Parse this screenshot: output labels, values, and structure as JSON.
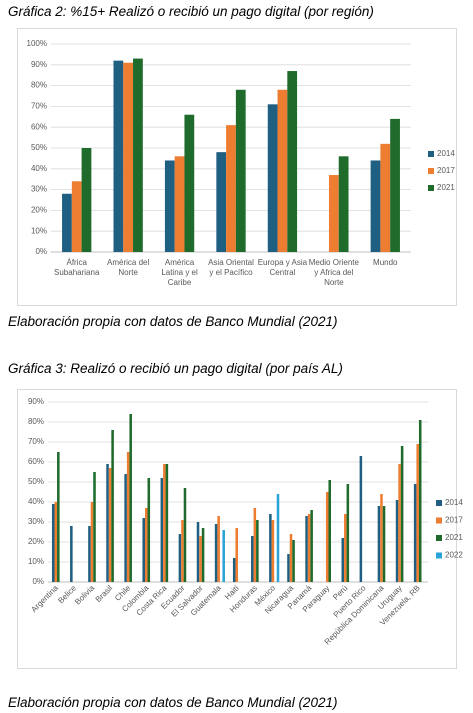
{
  "chart_data": [
    {
      "type": "bar",
      "title": "Gráfica 2: %15+ Realizó o recibió un pago digital (por región)",
      "note": "Elaboración propia con datos de Banco Mundial (2021)",
      "categories": [
        "África Subahariana",
        "América del Norte",
        "América Latina y el Caribe",
        "Asia Oriental y el Pacífico",
        "Europa y Asia Central",
        "Medio Oriente y Africa del Norte",
        "Mundo"
      ],
      "series": [
        {
          "name": "2014",
          "color": "#1f5f82",
          "values": [
            28,
            92,
            44,
            48,
            71,
            null,
            44
          ]
        },
        {
          "name": "2017",
          "color": "#ed7d31",
          "values": [
            34,
            91,
            46,
            61,
            78,
            37,
            52
          ]
        },
        {
          "name": "2021",
          "color": "#1e6b2c",
          "values": [
            50,
            93,
            66,
            78,
            87,
            46,
            64
          ]
        }
      ],
      "ylim": [
        0,
        100
      ],
      "yticks": [
        {
          "value": 0,
          "label": "0%"
        },
        {
          "value": 10,
          "label": "10%"
        },
        {
          "value": 20,
          "label": "20%"
        },
        {
          "value": 30,
          "label": "30%"
        },
        {
          "value": 40,
          "label": "40%"
        },
        {
          "value": 50,
          "label": "50%"
        },
        {
          "value": 60,
          "label": "60%"
        },
        {
          "value": 70,
          "label": "70%"
        },
        {
          "value": 80,
          "label": "80%"
        },
        {
          "value": 90,
          "label": "90%"
        },
        {
          "value": 100,
          "label": "100%"
        }
      ],
      "grid": true,
      "legend": "right"
    },
    {
      "type": "bar",
      "title": "Gráfica 3: Realizó o recibió un pago digital (por país AL)",
      "note": "Elaboración propia con datos de Banco Mundial (2021)",
      "categories": [
        "Argentina",
        "Belice",
        "Bolivia",
        "Brasil",
        "Chile",
        "Colombia",
        "Costa Rica",
        "Ecuador",
        "El Salvador",
        "Guatemala",
        "Haití",
        "Honduras",
        "México",
        "Nicaragua",
        "Panamá",
        "Paraguay",
        "Perú",
        "Puerto Rico",
        "República Dominicana",
        "Uruguay",
        "Venezuela, RB"
      ],
      "series": [
        {
          "name": "2014",
          "color": "#1f5f82",
          "values": [
            39,
            28,
            28,
            59,
            54,
            32,
            52,
            24,
            30,
            29,
            12,
            23,
            34,
            14,
            33,
            null,
            22,
            63,
            38,
            41,
            49
          ]
        },
        {
          "name": "2017",
          "color": "#ed7d31",
          "values": [
            40,
            null,
            40,
            57,
            65,
            37,
            59,
            31,
            23,
            33,
            27,
            37,
            31,
            24,
            34,
            45,
            34,
            null,
            44,
            59,
            69
          ]
        },
        {
          "name": "2021",
          "color": "#1e6b2c",
          "values": [
            65,
            null,
            55,
            76,
            84,
            52,
            59,
            47,
            27,
            null,
            null,
            31,
            null,
            21,
            36,
            51,
            49,
            null,
            38,
            68,
            81
          ]
        },
        {
          "name": "2022",
          "color": "#2aa3d6",
          "values": [
            null,
            null,
            null,
            null,
            null,
            null,
            null,
            null,
            null,
            26,
            null,
            null,
            44,
            null,
            null,
            null,
            null,
            null,
            null,
            null,
            null
          ]
        }
      ],
      "ylim": [
        0,
        90
      ],
      "yticks": [
        {
          "value": 0,
          "label": "0%"
        },
        {
          "value": 10,
          "label": "10%"
        },
        {
          "value": 20,
          "label": "20%"
        },
        {
          "value": 30,
          "label": "30%"
        },
        {
          "value": 40,
          "label": "40%"
        },
        {
          "value": 50,
          "label": "50%"
        },
        {
          "value": 60,
          "label": "60%"
        },
        {
          "value": 70,
          "label": "70%"
        },
        {
          "value": 80,
          "label": "80%"
        },
        {
          "value": 90,
          "label": "90%"
        }
      ],
      "grid": true,
      "legend": "right"
    }
  ]
}
